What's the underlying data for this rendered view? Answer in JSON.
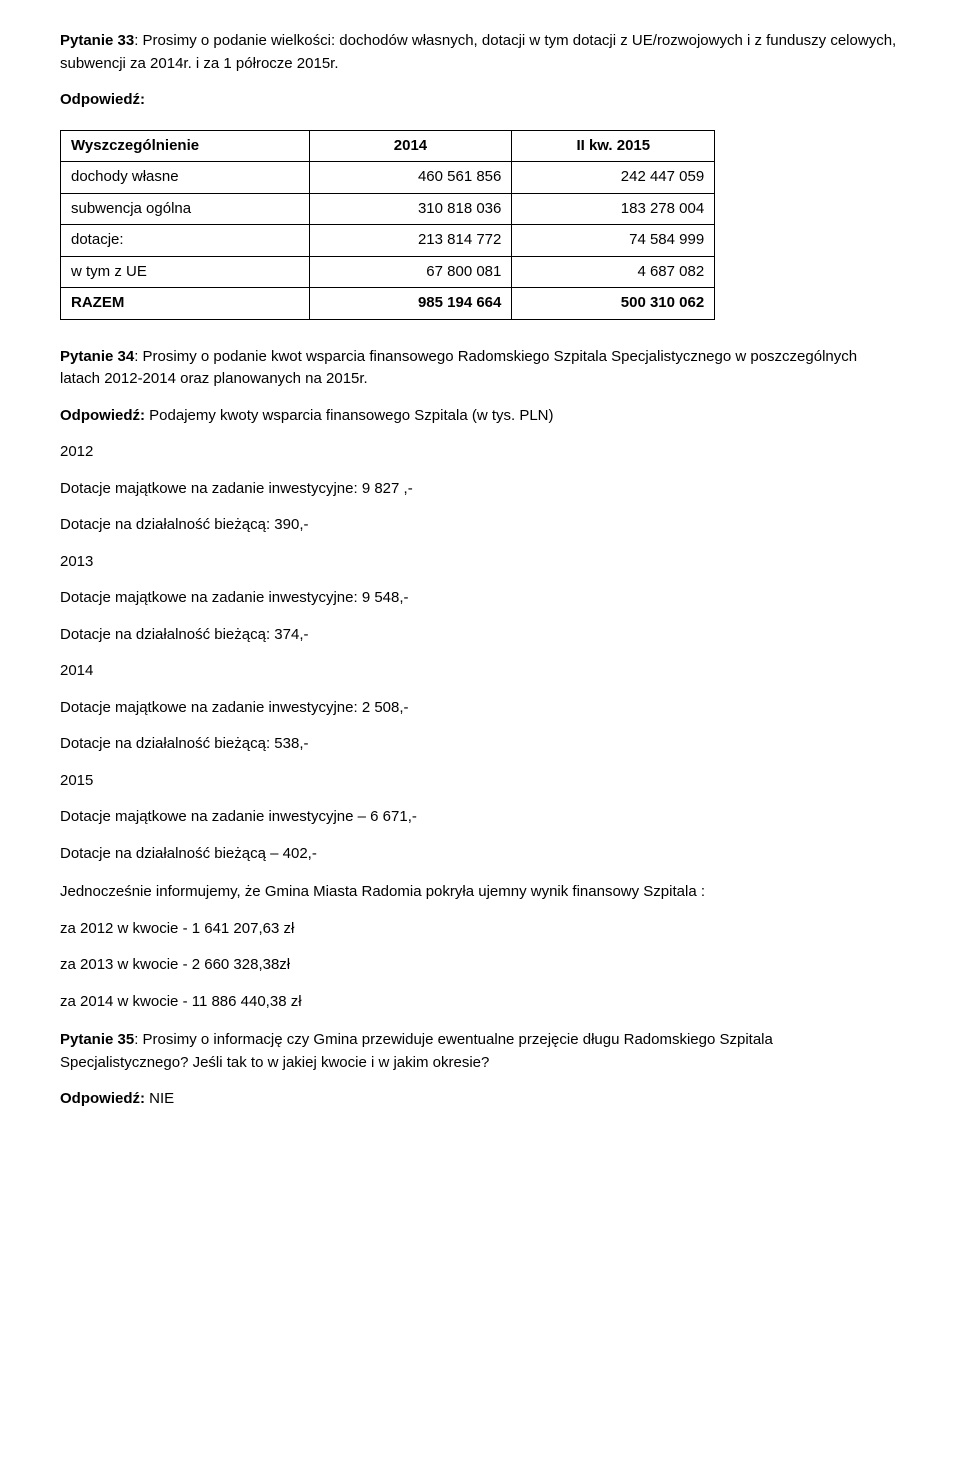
{
  "q33": {
    "label": "Pytanie 33",
    "text": ": Prosimy o podanie wielkości: dochodów własnych, dotacji w tym dotacji z UE/rozwojowych i z funduszy celowych, subwencji za 2014r. i za  1 półrocze 2015r.",
    "answer_label": "Odpowiedź:"
  },
  "table": {
    "col_widths": [
      "38%",
      "31%",
      "31%"
    ],
    "headers": [
      "Wyszczególnienie",
      "2014",
      "II kw. 2015"
    ],
    "rows": [
      {
        "label": "dochody własne",
        "v1": "460 561 856",
        "v2": "242 447 059",
        "bold": false
      },
      {
        "label": "subwencja ogólna",
        "v1": "310 818 036",
        "v2": "183 278 004",
        "bold": false
      },
      {
        "label": "dotacje:",
        "v1": "213 814 772",
        "v2": "74 584 999",
        "bold": false
      },
      {
        "label": "w tym z UE",
        "v1": "67 800 081",
        "v2": "4 687 082",
        "bold": false
      },
      {
        "label": "RAZEM",
        "v1": "985 194 664",
        "v2": "500 310 062",
        "bold": true
      }
    ]
  },
  "q34": {
    "label": "Pytanie 34",
    "text": ": Prosimy o podanie kwot wsparcia finansowego Radomskiego Szpitala Specjalistycznego w poszczególnych latach 2012-2014 oraz planowanych na 2015r.",
    "answer_label": "Odpowiedź:",
    "answer_text": " Podajemy kwoty wsparcia finansowego Szpitala (w tys. PLN)"
  },
  "years": [
    {
      "year": "2012",
      "l1": "Dotacje majątkowe na zadanie inwestycyjne: 9 827 ,-",
      "l2": "Dotacje na działalność bieżącą: 390,-"
    },
    {
      "year": "2013",
      "l1": "Dotacje majątkowe na zadanie inwestycyjne: 9 548,-",
      "l2": "Dotacje na działalność bieżącą: 374,-"
    },
    {
      "year": "2014",
      "l1": "Dotacje majątkowe na zadanie inwestycyjne: 2 508,-",
      "l2": "Dotacje na działalność bieżącą: 538,-"
    },
    {
      "year": "2015",
      "l1": "Dotacje majątkowe na zadanie inwestycyjne – 6 671,-",
      "l2": "Dotacje na działalność bieżącą – 402,-"
    }
  ],
  "info": {
    "intro": "Jednocześnie informujemy, że Gmina Miasta Radomia pokryła  ujemny wynik finansowy Szpitala :",
    "lines": [
      "za 2012  w kwocie - 1 641 207,63 zł",
      "za 2013 w kwocie - 2 660 328,38zł",
      "za 2014 w kwocie - 11 886 440,38 zł"
    ]
  },
  "q35": {
    "label": "Pytanie 35",
    "text": ": Prosimy o informację czy Gmina przewiduje ewentualne przejęcie długu Radomskiego Szpitala Specjalistycznego? Jeśli tak to w jakiej kwocie i w jakim okresie?",
    "answer_label": "Odpowiedź:",
    "answer_text": " NIE"
  }
}
